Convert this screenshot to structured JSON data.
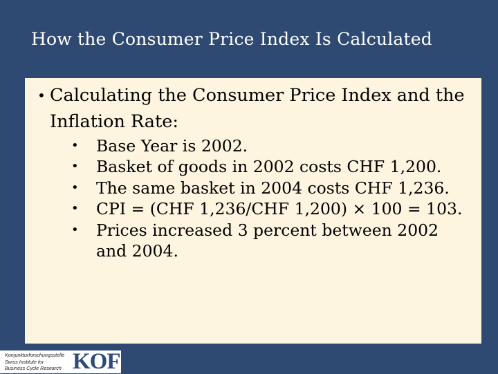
{
  "title": "How the Consumer Price Index Is Calculated",
  "main_bullet": "Calculating the Consumer Price Index and the Inflation Rate:",
  "sub_bullets": [
    "Base Year is 2002.",
    "Basket of goods in 2002 costs CHF 1,200.",
    "The same basket in 2004 costs CHF 1,236.",
    "CPI = (CHF 1,236/CHF 1,200) × 100 = 103.",
    "Prices increased 3 percent between 2002 and 2004."
  ],
  "logo": {
    "line1": "Konjunkturforschungsstelle",
    "line2": "Swiss Institute for",
    "line3": "Business Cycle Research",
    "mark": "KOF"
  },
  "colors": {
    "background": "#2e4a72",
    "panel": "#fdf5e0",
    "title_text": "#ffffff",
    "logo_mark": "#2b4a7e"
  },
  "icons": {
    "bullet": "filled-dot"
  }
}
